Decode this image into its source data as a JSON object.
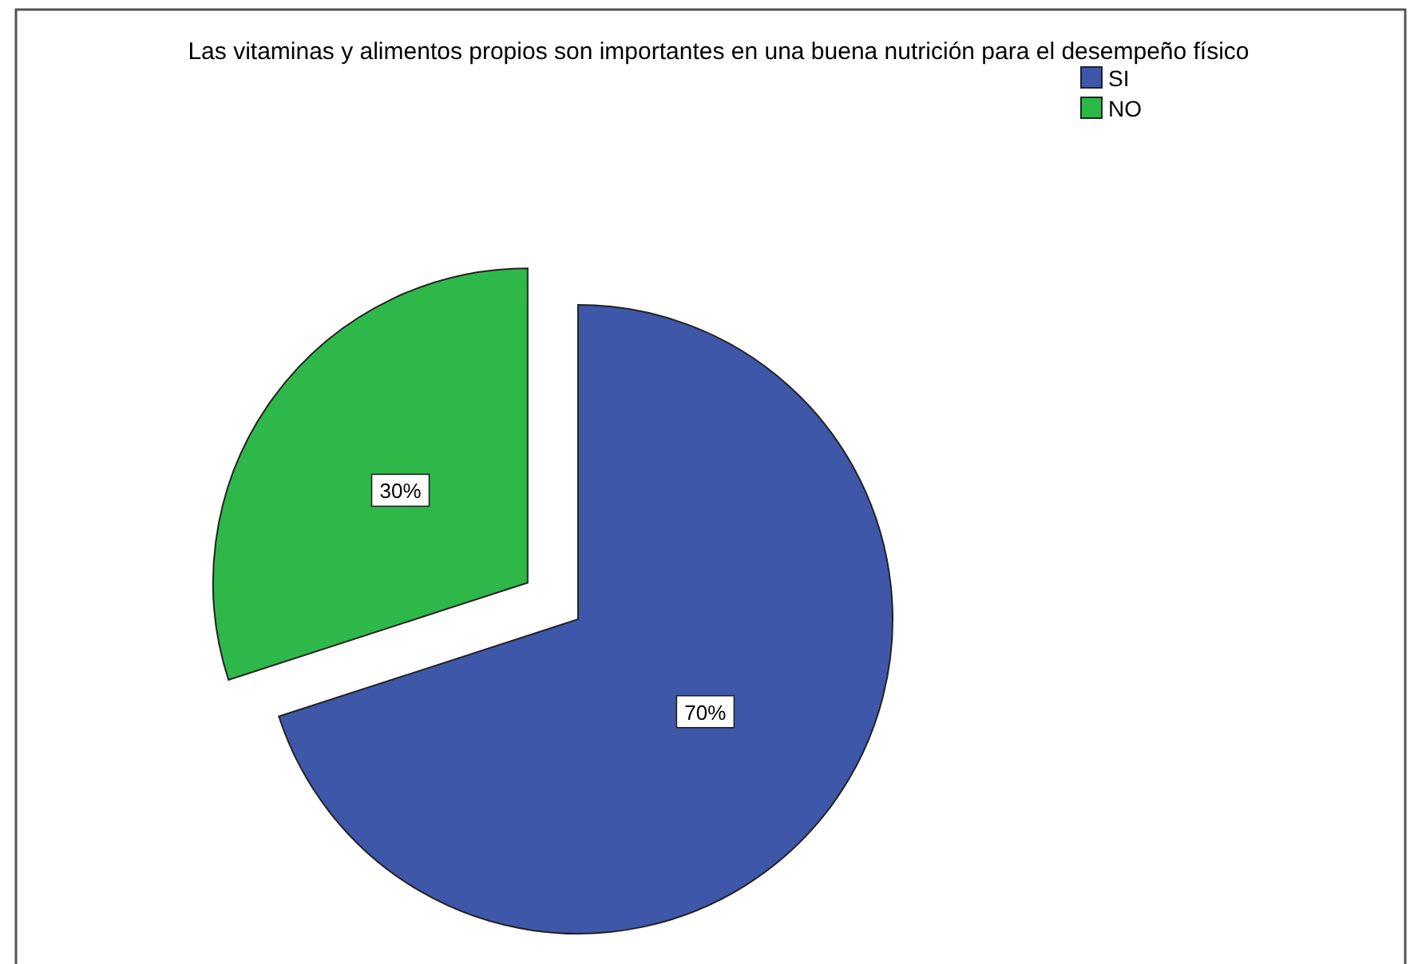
{
  "chart_data": {
    "type": "pie",
    "title": "Las vitaminas y alimentos propios son importantes en una buena nutrición para el desempeño físico",
    "categories": [
      "SI",
      "NO"
    ],
    "values": [
      70,
      30
    ],
    "colors": [
      "#3f57a8",
      "#2fb84a"
    ],
    "value_labels": [
      "70%",
      "30%"
    ],
    "legend": "top right"
  }
}
